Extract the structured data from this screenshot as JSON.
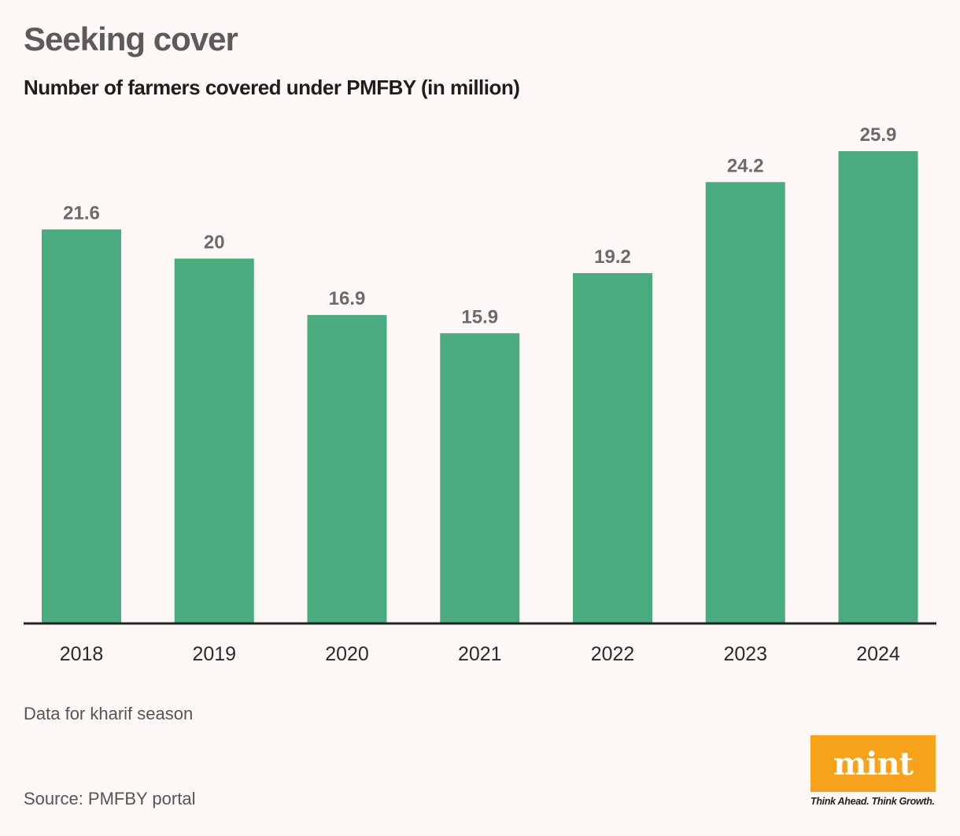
{
  "chart_data": {
    "type": "bar",
    "title": "Seeking cover",
    "subtitle": "Number of farmers covered under PMFBY (in million)",
    "categories": [
      "2018",
      "2019",
      "2020",
      "2021",
      "2022",
      "2023",
      "2024"
    ],
    "values": [
      21.6,
      20,
      16.9,
      15.9,
      19.2,
      24.2,
      25.9
    ],
    "value_labels": [
      "21.6",
      "20",
      "16.9",
      "15.9",
      "19.2",
      "24.2",
      "25.9"
    ],
    "xlabel": "",
    "ylabel": "",
    "ylim": [
      0,
      25.9
    ],
    "grid": false,
    "bar_color": "#4aab80",
    "label_color": "#6b6b6b",
    "axis_color": "#222222"
  },
  "footer": {
    "note": "Data for kharif season",
    "source": "Source: PMFBY portal"
  },
  "brand": {
    "logo_text": "mint",
    "tagline": "Think Ahead. Think Growth.",
    "logo_color": "#f7a21b"
  }
}
